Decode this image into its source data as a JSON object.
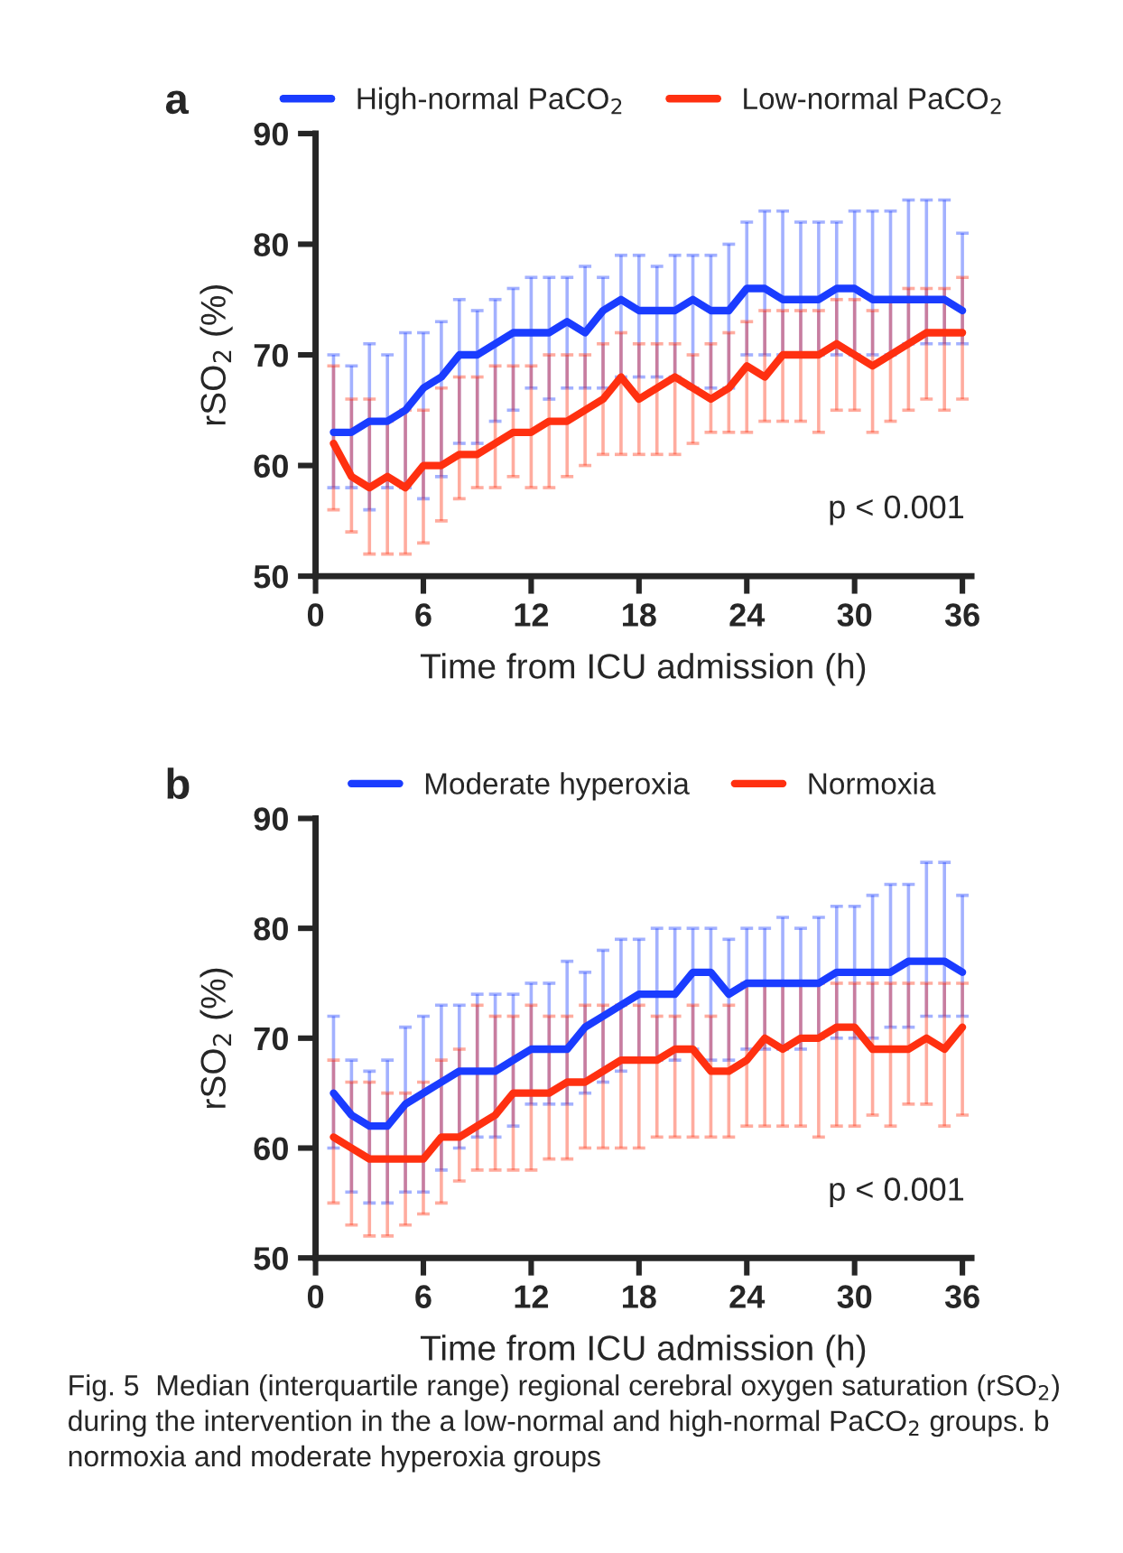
{
  "chart_data": [
    {
      "type": "line",
      "title": "a",
      "xlabel": "Time from ICU admission (h)",
      "ylabel": "rSO$_{2}$ (%)",
      "x": [
        1,
        2,
        3,
        4,
        5,
        6,
        7,
        8,
        9,
        10,
        11,
        12,
        13,
        14,
        15,
        16,
        17,
        18,
        19,
        20,
        21,
        22,
        23,
        24,
        25,
        26,
        27,
        28,
        29,
        30,
        31,
        32,
        33,
        34,
        35,
        36
      ],
      "xlim": [
        0,
        36.5
      ],
      "xticks": [
        0,
        6,
        12,
        18,
        24,
        30,
        36
      ],
      "ylim": [
        50,
        90
      ],
      "yticks": [
        50,
        60,
        70,
        80,
        90
      ],
      "legend": "top",
      "annotations": [
        "p < 0.001"
      ],
      "series": [
        {
          "name": "High-normal PaCO$_{2}$",
          "color": "#1a3cff",
          "values": [
            63,
            63,
            64,
            64,
            65,
            67,
            68,
            70,
            70,
            71,
            72,
            72,
            72,
            73,
            72,
            74,
            75,
            74,
            74,
            74,
            75,
            74,
            74,
            76,
            76,
            75,
            75,
            75,
            76,
            76,
            75,
            75,
            75,
            75,
            75,
            74
          ],
          "errors": [
            [
              58,
              70
            ],
            [
              58,
              69
            ],
            [
              56,
              71
            ],
            [
              58,
              70
            ],
            [
              58,
              72
            ],
            [
              57,
              72
            ],
            [
              59,
              73
            ],
            [
              62,
              75
            ],
            [
              62,
              74
            ],
            [
              64,
              75
            ],
            [
              65,
              76
            ],
            [
              67,
              77
            ],
            [
              66,
              77
            ],
            [
              67,
              77
            ],
            [
              67,
              78
            ],
            [
              67,
              77
            ],
            [
              68,
              79
            ],
            [
              68,
              79
            ],
            [
              68,
              78
            ],
            [
              68,
              79
            ],
            [
              67,
              79
            ],
            [
              67,
              79
            ],
            [
              67,
              80
            ],
            [
              70,
              82
            ],
            [
              70,
              83
            ],
            [
              70,
              83
            ],
            [
              70,
              82
            ],
            [
              70,
              82
            ],
            [
              70,
              82
            ],
            [
              70,
              83
            ],
            [
              70,
              83
            ],
            [
              70,
              83
            ],
            [
              71,
              84
            ],
            [
              71,
              84
            ],
            [
              71,
              84
            ],
            [
              71,
              81
            ]
          ]
        },
        {
          "name": "Low-normal PaCO$_{2}$",
          "color": "#ff3010",
          "values": [
            62,
            59,
            58,
            59,
            58,
            60,
            60,
            61,
            61,
            62,
            63,
            63,
            64,
            64,
            65,
            66,
            68,
            66,
            67,
            68,
            67,
            66,
            67,
            69,
            68,
            70,
            70,
            70,
            71,
            70,
            69,
            70,
            71,
            72,
            72,
            72
          ],
          "errors": [
            [
              56,
              69
            ],
            [
              54,
              66
            ],
            [
              52,
              66
            ],
            [
              52,
              64
            ],
            [
              52,
              65
            ],
            [
              53,
              65
            ],
            [
              55,
              67
            ],
            [
              57,
              68
            ],
            [
              58,
              68
            ],
            [
              58,
              69
            ],
            [
              59,
              69
            ],
            [
              58,
              69
            ],
            [
              58,
              70
            ],
            [
              59,
              70
            ],
            [
              60,
              70
            ],
            [
              61,
              71
            ],
            [
              61,
              72
            ],
            [
              61,
              71
            ],
            [
              61,
              71
            ],
            [
              61,
              71
            ],
            [
              62,
              70
            ],
            [
              63,
              71
            ],
            [
              63,
              72
            ],
            [
              63,
              73
            ],
            [
              64,
              74
            ],
            [
              64,
              74
            ],
            [
              64,
              74
            ],
            [
              63,
              74
            ],
            [
              65,
              75
            ],
            [
              65,
              75
            ],
            [
              63,
              74
            ],
            [
              64,
              75
            ],
            [
              65,
              76
            ],
            [
              66,
              76
            ],
            [
              65,
              76
            ],
            [
              66,
              77
            ]
          ]
        }
      ]
    },
    {
      "type": "line",
      "title": "b",
      "xlabel": "Time from ICU admission (h)",
      "ylabel": "rSO$_{2}$ (%)",
      "x": [
        1,
        2,
        3,
        4,
        5,
        6,
        7,
        8,
        9,
        10,
        11,
        12,
        13,
        14,
        15,
        16,
        17,
        18,
        19,
        20,
        21,
        22,
        23,
        24,
        25,
        26,
        27,
        28,
        29,
        30,
        31,
        32,
        33,
        34,
        35,
        36
      ],
      "xlim": [
        0,
        36.5
      ],
      "xticks": [
        0,
        6,
        12,
        18,
        24,
        30,
        36
      ],
      "ylim": [
        50,
        90
      ],
      "yticks": [
        50,
        60,
        70,
        80,
        90
      ],
      "legend": "top",
      "annotations": [
        "p < 0.001",
        "Fig. 5  Median (interquartile range) regional cerebral oxygen saturation (rSO$_{2}$) during the intervention in the a low-normal and high-normal PaCO$_{2}$ groups. b normoxia and moderate hyperoxia groups"
      ],
      "series": [
        {
          "name": "Moderate hyperoxia",
          "color": "#1a3cff",
          "values": [
            65,
            63,
            62,
            62,
            64,
            65,
            66,
            67,
            67,
            67,
            68,
            69,
            69,
            69,
            71,
            72,
            73,
            74,
            74,
            74,
            76,
            76,
            74,
            75,
            75,
            75,
            75,
            75,
            76,
            76,
            76,
            76,
            77,
            77,
            77,
            76
          ],
          "errors": [
            [
              60,
              72
            ],
            [
              56,
              68
            ],
            [
              55,
              67
            ],
            [
              55,
              68
            ],
            [
              56,
              71
            ],
            [
              56,
              72
            ],
            [
              58,
              73
            ],
            [
              60,
              73
            ],
            [
              61,
              74
            ],
            [
              61,
              74
            ],
            [
              62,
              74
            ],
            [
              64,
              75
            ],
            [
              64,
              75
            ],
            [
              64,
              77
            ],
            [
              65,
              76
            ],
            [
              66,
              78
            ],
            [
              67,
              79
            ],
            [
              68,
              79
            ],
            [
              68,
              80
            ],
            [
              68,
              80
            ],
            [
              69,
              80
            ],
            [
              68,
              80
            ],
            [
              68,
              79
            ],
            [
              69,
              80
            ],
            [
              69,
              80
            ],
            [
              69,
              81
            ],
            [
              69,
              80
            ],
            [
              70,
              81
            ],
            [
              70,
              82
            ],
            [
              70,
              82
            ],
            [
              70,
              83
            ],
            [
              71,
              84
            ],
            [
              71,
              84
            ],
            [
              72,
              86
            ],
            [
              72,
              86
            ],
            [
              72,
              83
            ]
          ]
        },
        {
          "name": "Normoxia",
          "color": "#ff3010",
          "values": [
            61,
            60,
            59,
            59,
            59,
            59,
            61,
            61,
            62,
            63,
            65,
            65,
            65,
            66,
            66,
            67,
            68,
            68,
            68,
            69,
            69,
            67,
            67,
            68,
            70,
            69,
            70,
            70,
            71,
            71,
            69,
            69,
            69,
            70,
            69,
            71
          ],
          "errors": [
            [
              55,
              68
            ],
            [
              53,
              66
            ],
            [
              52,
              66
            ],
            [
              52,
              65
            ],
            [
              53,
              65
            ],
            [
              54,
              66
            ],
            [
              55,
              68
            ],
            [
              57,
              69
            ],
            [
              58,
              73
            ],
            [
              58,
              72
            ],
            [
              58,
              72
            ],
            [
              58,
              73
            ],
            [
              59,
              72
            ],
            [
              59,
              72
            ],
            [
              60,
              73
            ],
            [
              60,
              73
            ],
            [
              60,
              73
            ],
            [
              60,
              73
            ],
            [
              61,
              72
            ],
            [
              61,
              72
            ],
            [
              61,
              73
            ],
            [
              61,
              72
            ],
            [
              61,
              73
            ],
            [
              62,
              75
            ],
            [
              62,
              75
            ],
            [
              62,
              75
            ],
            [
              62,
              75
            ],
            [
              61,
              75
            ],
            [
              62,
              75
            ],
            [
              62,
              75
            ],
            [
              63,
              75
            ],
            [
              62,
              75
            ],
            [
              64,
              75
            ],
            [
              64,
              75
            ],
            [
              62,
              75
            ],
            [
              63,
              75
            ]
          ]
        }
      ]
    }
  ]
}
